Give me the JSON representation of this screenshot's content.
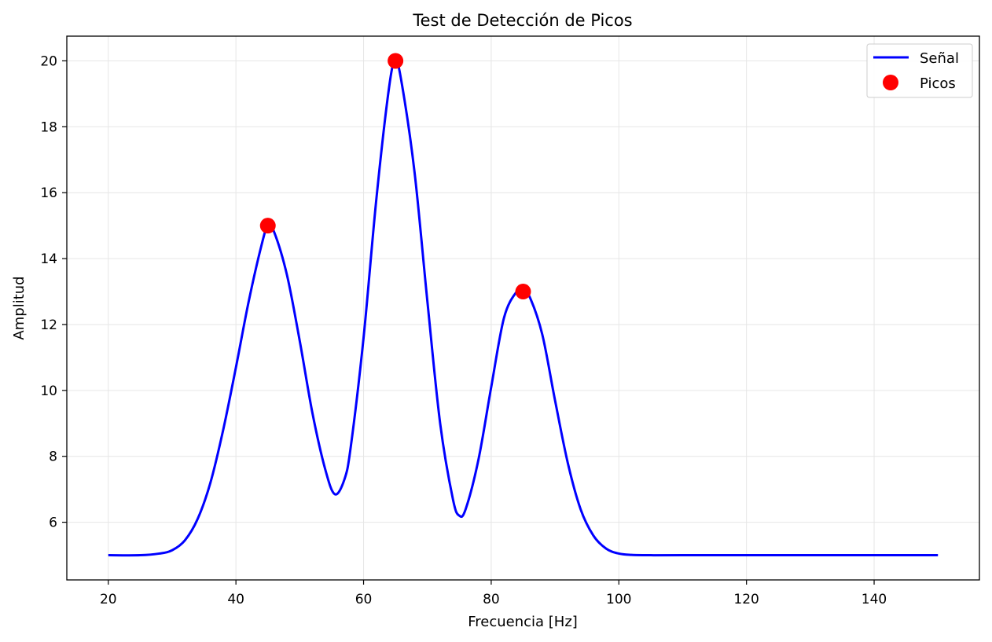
{
  "chart_data": {
    "type": "line",
    "title": "Test de Detección de Picos",
    "xlabel": "Frecuencia [Hz]",
    "ylabel": "Amplitud",
    "xlim": [
      13.5,
      156.5
    ],
    "ylim": [
      4.25,
      20.75
    ],
    "xticks": [
      20,
      40,
      60,
      80,
      100,
      120,
      140
    ],
    "yticks": [
      6,
      8,
      10,
      12,
      14,
      16,
      18,
      20
    ],
    "grid": true,
    "legend_position": "top-right",
    "colors": {
      "signal": "#0000ff",
      "peaks": "#ff0000"
    },
    "series": [
      {
        "name": "Señal",
        "kind": "line",
        "x": [
          20,
          25,
          28,
          30,
          32,
          34,
          36,
          38,
          40,
          42,
          44,
          45,
          46,
          48,
          50,
          52,
          54,
          55.5,
          57,
          58,
          60,
          62,
          64,
          65,
          66,
          68,
          70,
          72,
          74,
          75,
          76,
          78,
          80,
          82,
          84,
          85,
          86,
          88,
          90,
          92,
          94,
          96,
          98,
          100,
          102,
          105,
          110,
          120,
          130,
          140,
          150
        ],
        "y": [
          5.0,
          5.0,
          5.05,
          5.15,
          5.45,
          6.1,
          7.2,
          8.8,
          10.7,
          12.7,
          14.4,
          15.0,
          14.8,
          13.5,
          11.5,
          9.3,
          7.6,
          6.85,
          7.3,
          8.3,
          11.6,
          15.8,
          19.2,
          20.0,
          19.3,
          16.6,
          12.7,
          9.0,
          6.7,
          6.2,
          6.4,
          7.9,
          10.1,
          12.2,
          13.0,
          13.0,
          12.85,
          11.7,
          9.7,
          7.8,
          6.4,
          5.6,
          5.2,
          5.05,
          5.01,
          5.0,
          5.0,
          5.0,
          5.0,
          5.0,
          5.0
        ]
      },
      {
        "name": "Picos",
        "kind": "scatter",
        "x": [
          45,
          65,
          85
        ],
        "y": [
          15,
          20,
          13
        ]
      }
    ]
  }
}
